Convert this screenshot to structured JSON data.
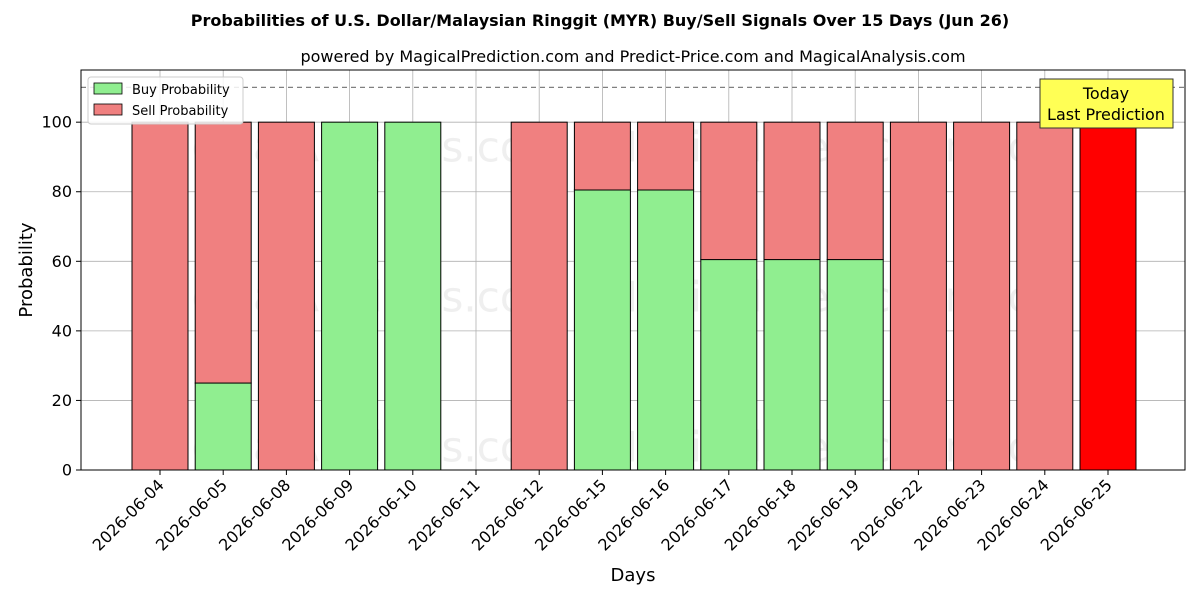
{
  "chart_data": {
    "type": "bar",
    "stacked": true,
    "title": "Probabilities of U.S. Dollar/Malaysian Ringgit (MYR) Buy/Sell Signals Over 15 Days (Jun 26)",
    "subtitle": "powered by MagicalPrediction.com and Predict-Price.com and MagicalAnalysis.com",
    "xlabel": "Days",
    "ylabel": "Probability",
    "ylim": [
      0,
      115
    ],
    "yticks": [
      0,
      20,
      40,
      60,
      80,
      100
    ],
    "grid": true,
    "legend_placement": "top-left",
    "reference_line": 110,
    "categories": [
      "2026-06-04",
      "2026-06-05",
      "2026-06-08",
      "2026-06-09",
      "2026-06-10",
      "2026-06-11",
      "2026-06-12",
      "2026-06-15",
      "2026-06-16",
      "2026-06-17",
      "2026-06-18",
      "2026-06-19",
      "2026-06-22",
      "2026-06-23",
      "2026-06-24",
      "2026-06-25"
    ],
    "series": [
      {
        "name": "Buy Probability",
        "color": "#90ee90",
        "values": [
          0,
          25,
          0,
          100,
          100,
          0,
          0,
          80.5,
          80.5,
          60.5,
          60.5,
          60.5,
          0,
          0,
          0,
          0
        ]
      },
      {
        "name": "Sell Probability",
        "color": "#f08080",
        "values": [
          100,
          75,
          100,
          0,
          0,
          0,
          100,
          19.5,
          19.5,
          39.5,
          39.5,
          39.5,
          100,
          100,
          100,
          100
        ]
      }
    ],
    "highlight": {
      "index": 15,
      "color": "#ff0000"
    },
    "annotation": {
      "line1": "Today",
      "line2": "Last Prediction",
      "background": "#ffff55"
    },
    "watermarks": [
      "MagicalAnalysis.com",
      "MagicalPrediction.com"
    ]
  }
}
